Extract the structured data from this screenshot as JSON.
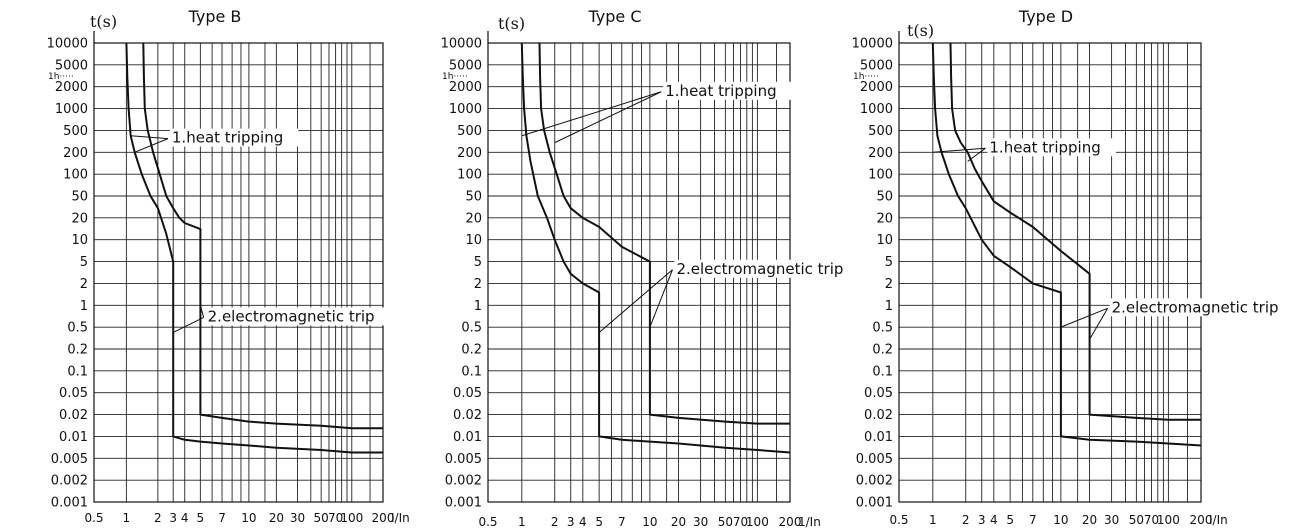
{
  "chart_data": [
    {
      "type": "line",
      "title": "Type B",
      "ylabel": "t(s)",
      "xlabel": "I/In",
      "x_ticks": [
        "0.5",
        "1",
        "2",
        "3",
        "4",
        "5",
        "7",
        "10",
        "20",
        "30",
        "50",
        "70",
        "100",
        "200"
      ],
      "y_ticks": [
        "10000",
        "5000",
        "2000",
        "1000",
        "500",
        "200",
        "100",
        "50",
        "20",
        "10",
        "5",
        "2",
        "1",
        "0.5",
        "0.2",
        "0.1",
        "0.05",
        "0.02",
        "0.01",
        "0.005",
        "0.002",
        "0.001"
      ],
      "ih_label": "1h",
      "ylim": [
        0.001,
        10000
      ],
      "xlim": [
        0.5,
        200
      ],
      "x_scale": "log",
      "y_scale": "log",
      "grid": true,
      "series": [
        {
          "x": [
            1.0,
            1.02,
            1.05,
            1.1,
            1.2,
            1.4,
            1.7,
            2.0,
            2.5,
            3.0,
            3.0,
            3.0,
            4,
            5,
            7,
            10,
            20,
            50,
            100,
            200
          ],
          "y": [
            10000,
            3000,
            1000,
            400,
            200,
            100,
            50,
            30,
            12,
            5,
            3,
            0.01,
            0.009,
            0.0085,
            0.008,
            0.0075,
            0.007,
            0.0065,
            0.006,
            0.006
          ]
        },
        {
          "x": [
            1.45,
            1.47,
            1.5,
            1.6,
            1.8,
            2.1,
            2.5,
            3.0,
            3.5,
            4.0,
            5.0,
            5.0,
            7,
            10,
            20,
            50,
            100,
            200
          ],
          "y": [
            10000,
            3000,
            1000,
            500,
            200,
            100,
            50,
            30,
            20,
            17,
            14,
            0.02,
            0.018,
            0.016,
            0.015,
            0.014,
            0.013,
            0.013
          ]
        }
      ],
      "annotations": [
        {
          "text": "1.heat tripping",
          "label_x": 2.9,
          "label_y": 300,
          "arrow_to": [
            [
              1.1,
              400
            ],
            [
              1.2,
              200
            ]
          ]
        },
        {
          "text": "2.electromagnetic trip",
          "label_x": 5.6,
          "label_y": 0.6,
          "arrow_to": [
            [
              5.0,
              1.0
            ],
            [
              3.0,
              0.4
            ]
          ]
        }
      ]
    },
    {
      "type": "line",
      "title": "Type C",
      "ylabel": "t(s)",
      "xlabel": "1/In",
      "x_ticks": [
        "0.5",
        "1",
        "2",
        "3",
        "4",
        "5",
        "7",
        "10",
        "20",
        "30",
        "50",
        "70",
        "100",
        "200"
      ],
      "y_ticks": [
        "10000",
        "5000",
        "2000",
        "1000",
        "500",
        "200",
        "100",
        "50",
        "20",
        "10",
        "5",
        "2",
        "1",
        "0.5",
        "0.2",
        "0.1",
        "0.05",
        "0.02",
        "0.01",
        "0.005",
        "0.002",
        "0.001"
      ],
      "ih_label": "1h",
      "ylim": [
        0.001,
        10000
      ],
      "xlim": [
        0.5,
        200
      ],
      "x_scale": "log",
      "y_scale": "log",
      "grid": true,
      "series": [
        {
          "x": [
            1.0,
            1.02,
            1.05,
            1.1,
            1.2,
            1.4,
            1.7,
            2.0,
            2.5,
            3.0,
            4.0,
            5.0,
            5.0,
            7,
            10,
            20,
            50,
            100,
            200
          ],
          "y": [
            10000,
            3000,
            1000,
            400,
            150,
            50,
            20,
            10,
            5,
            3,
            2,
            1.5,
            0.01,
            0.009,
            0.0085,
            0.008,
            0.007,
            0.0065,
            0.006
          ]
        },
        {
          "x": [
            1.45,
            1.47,
            1.5,
            1.6,
            1.8,
            2.1,
            2.5,
            3.0,
            4.0,
            5.0,
            7.0,
            10,
            10,
            20,
            50,
            100,
            200
          ],
          "y": [
            10000,
            3000,
            1000,
            500,
            200,
            100,
            50,
            30,
            20,
            15,
            8,
            5,
            0.02,
            0.018,
            0.016,
            0.015,
            0.015
          ]
        }
      ],
      "annotations": [
        {
          "text": "1.heat tripping",
          "label_x": 14.5,
          "label_y": 1500,
          "arrow_to": [
            [
              1.0,
              400
            ],
            [
              2.0,
              300
            ]
          ]
        },
        {
          "text": "2.electromagnetic trip",
          "label_x": 19.0,
          "label_y": 3.0,
          "arrow_to": [
            [
              5.0,
              0.4
            ],
            [
              10,
              0.5
            ]
          ]
        }
      ]
    },
    {
      "type": "line",
      "title": "Type D",
      "ylabel": "t(s)",
      "xlabel": "I/In",
      "x_ticks": [
        "0.5",
        "1",
        "2",
        "3",
        "4",
        "5",
        "7",
        "10",
        "20",
        "30",
        "50",
        "70",
        "100",
        "200"
      ],
      "y_ticks": [
        "10000",
        "5000",
        "2000",
        "1000",
        "500",
        "200",
        "100",
        "50",
        "20",
        "10",
        "5",
        "2",
        "1",
        "0.5",
        "0.2",
        "0.1",
        "0.05",
        "0.02",
        "0.01",
        "0.005",
        "0.002",
        "0.001"
      ],
      "ih_label": "1h",
      "ylim": [
        0.001,
        10000
      ],
      "xlim": [
        0.5,
        200
      ],
      "x_scale": "log",
      "y_scale": "log",
      "grid": true,
      "series": [
        {
          "x": [
            1.0,
            1.02,
            1.05,
            1.1,
            1.2,
            1.4,
            1.7,
            2.0,
            3.0,
            4.0,
            5.0,
            7.0,
            10,
            10,
            20,
            50,
            100,
            200
          ],
          "y": [
            10000,
            3000,
            1000,
            400,
            200,
            100,
            50,
            30,
            10,
            6,
            4,
            2,
            1.5,
            0.01,
            0.009,
            0.0085,
            0.008,
            0.0075
          ]
        },
        {
          "x": [
            1.45,
            1.47,
            1.5,
            1.6,
            1.8,
            2.1,
            2.5,
            3.0,
            4.0,
            5.0,
            7.0,
            10,
            20,
            20,
            50,
            100,
            200
          ],
          "y": [
            10000,
            3000,
            1000,
            500,
            300,
            200,
            120,
            80,
            40,
            25,
            15,
            7,
            3,
            0.02,
            0.018,
            0.017,
            0.017
          ]
        }
      ],
      "annotations": [
        {
          "text": "1.heat tripping",
          "label_x": 3.6,
          "label_y": 200,
          "arrow_to": [
            [
              1.0,
              200
            ],
            [
              2.1,
              150
            ]
          ]
        },
        {
          "text": "2.electromagnetic trip",
          "label_x": 30.0,
          "label_y": 0.8,
          "arrow_to": [
            [
              10,
              0.5
            ],
            [
              20,
              0.3
            ]
          ]
        }
      ]
    }
  ]
}
